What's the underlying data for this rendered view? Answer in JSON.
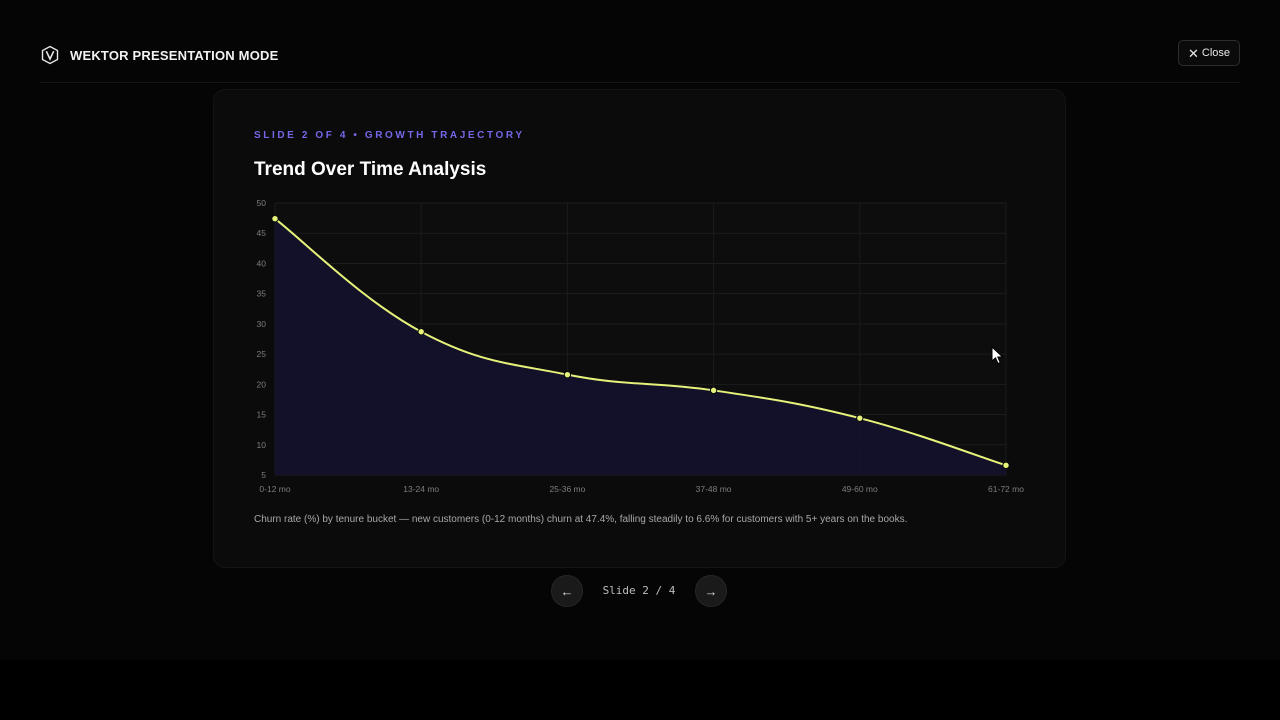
{
  "app": {
    "title": "WEKTOR PRESENTATION MODE",
    "logo_icon": "v-shield-logo",
    "close_label": "Close"
  },
  "slide": {
    "eyebrow": "SLIDE 2 OF 4 • GROWTH TRAJECTORY",
    "title": "Trend Over Time Analysis",
    "caption": "Churn rate (%) by tenure bucket — new customers (0-12 months) churn at 47.4%, falling steadily to 6.6% for customers with 5+ years on the books."
  },
  "pager": {
    "label": "Slide 2 / 4",
    "prev_icon": "←",
    "next_icon": "→"
  },
  "colors": {
    "accent": "#7468e8",
    "line": "#e6f27a",
    "area": "#14122b"
  },
  "chart_data": {
    "type": "area",
    "categories": [
      "0-12 mo",
      "13-24 mo",
      "25-36 mo",
      "37-48 mo",
      "49-60 mo",
      "61-72 mo"
    ],
    "series": [
      {
        "values": [
          47.4,
          28.7,
          21.6,
          19.0,
          14.4,
          6.6
        ]
      }
    ],
    "ylim": [
      5,
      50
    ],
    "yticks": [
      5,
      10,
      15,
      20,
      25,
      30,
      35,
      40,
      45,
      50
    ],
    "grid": true,
    "legend": "none"
  }
}
